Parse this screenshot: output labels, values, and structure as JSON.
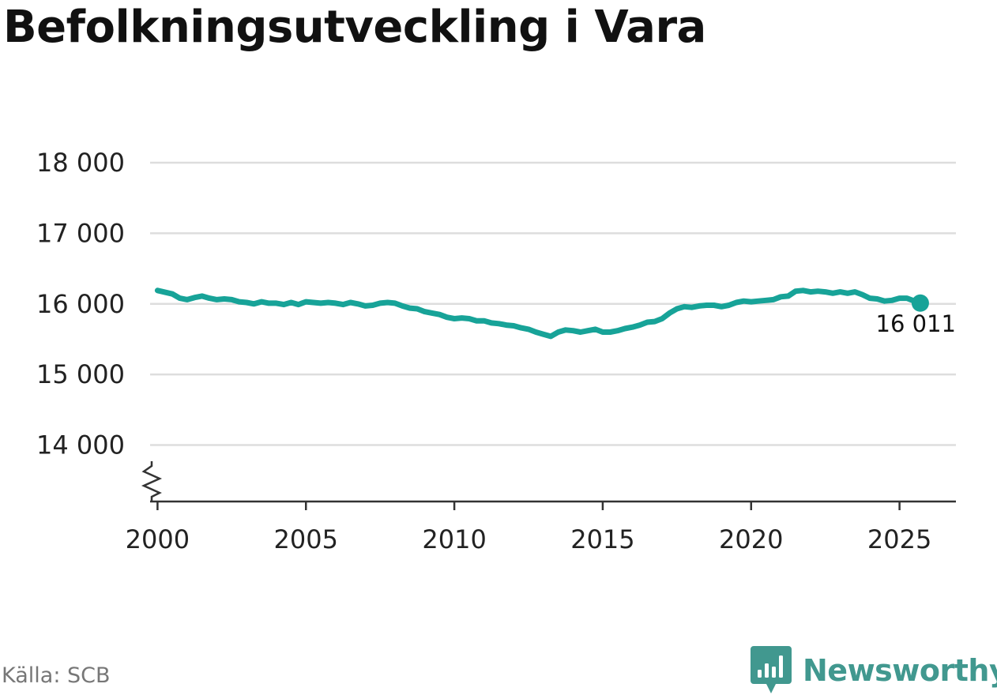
{
  "title": "Befolkningsutveckling i Vara",
  "source": "Källa: SCB",
  "brand": {
    "name": "Newsworthy",
    "icon": "newsworthy-logo-icon",
    "color": "#41988f"
  },
  "colors": {
    "line": "#17a398",
    "grid": "#dddddd",
    "axis": "#333333",
    "text": "#222222"
  },
  "chart_data": {
    "type": "line",
    "title": "Befolkningsutveckling i Vara",
    "xlabel": "",
    "ylabel": "",
    "xlim": [
      1999.75,
      2026.9
    ],
    "ylim": [
      13200,
      18000
    ],
    "xticks": [
      2000,
      2005,
      2010,
      2015,
      2020,
      2025
    ],
    "yticks": [
      14000,
      15000,
      16000,
      17000,
      18000
    ],
    "ytick_labels": [
      "14 000",
      "15 000",
      "16 000",
      "17 000",
      "18 000"
    ],
    "grid": true,
    "legend": "none",
    "axis_break": true,
    "series": [
      {
        "values": [
          [
            2000.0,
            16190
          ],
          [
            2000.5,
            16140
          ],
          [
            2000.75,
            16080
          ],
          [
            2001.0,
            16060
          ],
          [
            2001.25,
            16090
          ],
          [
            2001.5,
            16110
          ],
          [
            2001.75,
            16080
          ],
          [
            2002.0,
            16060
          ],
          [
            2002.25,
            16070
          ],
          [
            2002.5,
            16060
          ],
          [
            2002.75,
            16030
          ],
          [
            2003.0,
            16020
          ],
          [
            2003.25,
            16000
          ],
          [
            2003.5,
            16030
          ],
          [
            2003.75,
            16010
          ],
          [
            2004.0,
            16010
          ],
          [
            2004.25,
            15990
          ],
          [
            2004.5,
            16020
          ],
          [
            2004.75,
            15990
          ],
          [
            2005.0,
            16030
          ],
          [
            2005.25,
            16020
          ],
          [
            2005.5,
            16010
          ],
          [
            2005.75,
            16020
          ],
          [
            2006.0,
            16010
          ],
          [
            2006.25,
            15990
          ],
          [
            2006.5,
            16020
          ],
          [
            2006.75,
            16000
          ],
          [
            2007.0,
            15970
          ],
          [
            2007.25,
            15980
          ],
          [
            2007.5,
            16010
          ],
          [
            2007.75,
            16020
          ],
          [
            2008.0,
            16010
          ],
          [
            2008.25,
            15970
          ],
          [
            2008.5,
            15940
          ],
          [
            2008.75,
            15930
          ],
          [
            2009.0,
            15890
          ],
          [
            2009.25,
            15870
          ],
          [
            2009.5,
            15850
          ],
          [
            2009.75,
            15810
          ],
          [
            2010.0,
            15790
          ],
          [
            2010.25,
            15800
          ],
          [
            2010.5,
            15790
          ],
          [
            2010.75,
            15760
          ],
          [
            2011.0,
            15760
          ],
          [
            2011.25,
            15730
          ],
          [
            2011.5,
            15720
          ],
          [
            2011.75,
            15700
          ],
          [
            2012.0,
            15690
          ],
          [
            2012.25,
            15660
          ],
          [
            2012.5,
            15640
          ],
          [
            2012.75,
            15600
          ],
          [
            2013.0,
            15570
          ],
          [
            2013.25,
            15540
          ],
          [
            2013.5,
            15600
          ],
          [
            2013.75,
            15630
          ],
          [
            2014.0,
            15620
          ],
          [
            2014.25,
            15600
          ],
          [
            2014.5,
            15620
          ],
          [
            2014.75,
            15640
          ],
          [
            2015.0,
            15600
          ],
          [
            2015.25,
            15600
          ],
          [
            2015.5,
            15620
          ],
          [
            2015.75,
            15650
          ],
          [
            2016.0,
            15670
          ],
          [
            2016.25,
            15700
          ],
          [
            2016.5,
            15740
          ],
          [
            2016.75,
            15750
          ],
          [
            2017.0,
            15790
          ],
          [
            2017.25,
            15870
          ],
          [
            2017.5,
            15930
          ],
          [
            2017.75,
            15960
          ],
          [
            2018.0,
            15950
          ],
          [
            2018.25,
            15970
          ],
          [
            2018.5,
            15980
          ],
          [
            2018.75,
            15980
          ],
          [
            2019.0,
            15960
          ],
          [
            2019.25,
            15980
          ],
          [
            2019.5,
            16020
          ],
          [
            2019.75,
            16040
          ],
          [
            2020.0,
            16030
          ],
          [
            2020.25,
            16040
          ],
          [
            2020.5,
            16050
          ],
          [
            2020.75,
            16060
          ],
          [
            2021.0,
            16100
          ],
          [
            2021.25,
            16110
          ],
          [
            2021.5,
            16180
          ],
          [
            2021.75,
            16190
          ],
          [
            2022.0,
            16170
          ],
          [
            2022.25,
            16180
          ],
          [
            2022.5,
            16170
          ],
          [
            2022.75,
            16150
          ],
          [
            2023.0,
            16170
          ],
          [
            2023.25,
            16150
          ],
          [
            2023.5,
            16170
          ],
          [
            2023.75,
            16130
          ],
          [
            2024.0,
            16080
          ],
          [
            2024.25,
            16070
          ],
          [
            2024.5,
            16040
          ],
          [
            2024.75,
            16050
          ],
          [
            2025.0,
            16080
          ],
          [
            2025.25,
            16080
          ],
          [
            2025.5,
            16040
          ],
          [
            2025.7,
            16011
          ]
        ]
      }
    ],
    "end_label": "16 011"
  }
}
